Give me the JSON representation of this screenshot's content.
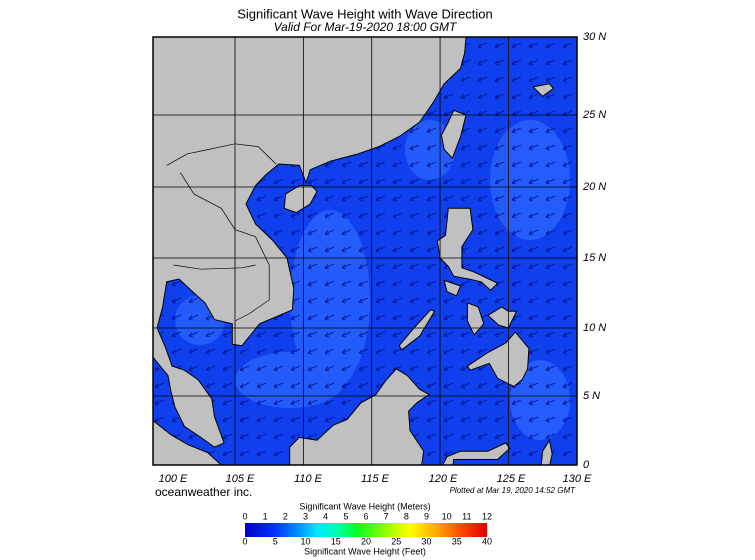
{
  "title": "Significant Wave Height with Wave Direction",
  "subtitle": "Valid For Mar-19-2020 18:00 GMT",
  "lat_labels": [
    "30 N",
    "25 N",
    "20 N",
    "15 N",
    "10 N",
    "5 N",
    "0"
  ],
  "lon_labels": [
    "100 E",
    "105 E",
    "110 E",
    "115 E",
    "120 E",
    "125 E",
    "130 E"
  ],
  "credit": "oceanweather inc.",
  "plotted": "Plotted at Mar 19, 2020 14:52 GMT",
  "colorbar": {
    "title_top": "Significant Wave Height (Meters)",
    "meters": [
      0,
      1,
      2,
      3,
      4,
      5,
      6,
      7,
      8,
      9,
      10,
      11,
      12
    ],
    "feet": [
      0,
      5,
      10,
      15,
      20,
      25,
      30,
      35,
      40
    ],
    "title_bottom": "Significant Wave Height (Feet)"
  }
}
